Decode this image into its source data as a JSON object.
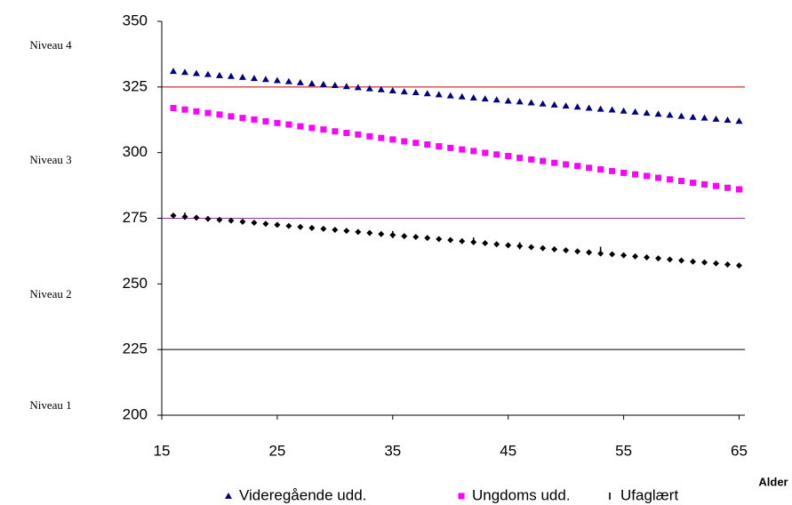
{
  "chart_data": {
    "type": "scatter",
    "x_label": "Alder",
    "level_labels": [
      "Niveau 4",
      "Niveau 3",
      "Niveau 2",
      "Niveau 1"
    ],
    "xlim": [
      15,
      65.5
    ],
    "xticks": [
      15,
      25,
      35,
      45,
      55,
      65
    ],
    "ylim": [
      200,
      350
    ],
    "yticks": [
      200,
      225,
      250,
      275,
      300,
      325,
      350
    ],
    "reference_lines": [
      {
        "value": 325,
        "color": "#c00000"
      },
      {
        "value": 275,
        "color": "#993399"
      },
      {
        "value": 225,
        "color": "#000000"
      }
    ],
    "x": [
      16,
      17,
      18,
      19,
      20,
      21,
      22,
      23,
      24,
      25,
      26,
      27,
      28,
      29,
      30,
      31,
      32,
      33,
      34,
      35,
      36,
      37,
      38,
      39,
      40,
      41,
      42,
      43,
      44,
      45,
      46,
      47,
      48,
      49,
      50,
      51,
      52,
      53,
      54,
      55,
      56,
      57,
      58,
      59,
      60,
      61,
      62,
      63,
      64,
      65
    ],
    "series": [
      {
        "name": "Videregående udd.",
        "color": "#000080",
        "marker": "triangle",
        "values": [
          331.0,
          330.6,
          330.2,
          329.8,
          329.4,
          329.1,
          328.7,
          328.3,
          327.9,
          327.5,
          327.1,
          326.7,
          326.3,
          326.0,
          325.6,
          325.2,
          324.8,
          324.4,
          324.0,
          323.6,
          323.2,
          322.9,
          322.5,
          322.1,
          321.7,
          321.3,
          320.9,
          320.5,
          320.1,
          319.7,
          319.4,
          319.0,
          318.6,
          318.2,
          317.8,
          317.4,
          317.0,
          316.6,
          316.3,
          315.9,
          315.5,
          315.1,
          314.7,
          314.3,
          313.9,
          313.5,
          313.2,
          312.8,
          312.4,
          312.0
        ]
      },
      {
        "name": "Ungdoms udd.",
        "color": "#ff00ff",
        "marker": "square",
        "values": [
          317.0,
          316.4,
          315.7,
          315.1,
          314.5,
          313.8,
          313.2,
          312.6,
          311.9,
          311.3,
          310.7,
          310.0,
          309.4,
          308.8,
          308.1,
          307.5,
          306.9,
          306.2,
          305.6,
          305.0,
          304.3,
          303.7,
          303.1,
          302.4,
          301.8,
          301.2,
          300.6,
          299.9,
          299.3,
          298.7,
          298.0,
          297.4,
          296.8,
          296.1,
          295.5,
          294.9,
          294.2,
          293.6,
          293.0,
          292.3,
          291.7,
          291.1,
          290.4,
          289.8,
          289.2,
          288.5,
          287.9,
          287.3,
          286.6,
          286.0
        ]
      },
      {
        "color": "#000000",
        "marker": "diamond",
        "values": [
          276.0,
          275.6,
          275.2,
          274.8,
          274.4,
          274.1,
          273.7,
          273.3,
          272.9,
          272.5,
          272.1,
          271.7,
          271.3,
          271.0,
          270.6,
          270.2,
          269.8,
          269.4,
          269.0,
          268.6,
          268.2,
          267.9,
          267.5,
          267.1,
          266.7,
          266.3,
          265.9,
          265.5,
          265.1,
          264.7,
          264.4,
          264.0,
          263.6,
          263.2,
          262.8,
          262.4,
          262.0,
          261.6,
          261.3,
          260.9,
          260.5,
          260.1,
          259.7,
          259.3,
          258.9,
          258.5,
          258.2,
          257.8,
          257.4,
          257.0
        ]
      },
      {
        "name": "Ufaglært",
        "color": "#000000",
        "marker": "dash",
        "x": [
          17,
          35,
          42,
          46,
          53
        ],
        "values": [
          275.8,
          268.8,
          266.3,
          264.5,
          262.8
        ]
      }
    ]
  }
}
